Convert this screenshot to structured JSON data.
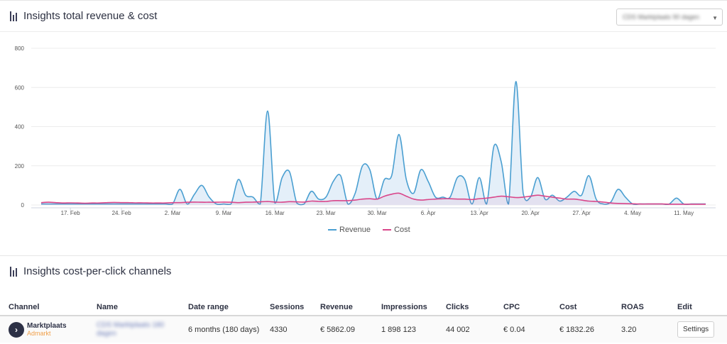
{
  "revenue_panel": {
    "title": "Insights total revenue & cost",
    "dropdown_value": "CDS Marktplaats 90 dagen"
  },
  "cpc_panel": {
    "title": "Insights cost-per-click channels",
    "columns": [
      "Channel",
      "Name",
      "Date range",
      "Sessions",
      "Revenue",
      "Impressions",
      "Clicks",
      "CPC",
      "Cost",
      "ROAS",
      "Edit"
    ],
    "row": {
      "channel_brand": "Marktplaats",
      "channel_sub": "Admarkt",
      "name_line1": "CDS Marktplaats 180",
      "name_line2": "dagen",
      "date_range": "6 months (180 days)",
      "sessions": "4330",
      "revenue": "€ 5862.09",
      "impressions": "1 898 123",
      "clicks": "44 002",
      "cpc": "€ 0.04",
      "cost": "€ 1832.26",
      "roas": "3.20",
      "edit_label": "Settings"
    }
  },
  "colors": {
    "revenue": "#4a9fd1",
    "cost": "#d9468a",
    "revenue_fill": "#e4eff9"
  },
  "chart_data": {
    "type": "area",
    "ylim": [
      0,
      800
    ],
    "yticks": [
      "0",
      "200",
      "400",
      "600",
      "800"
    ],
    "xticks": [
      "17. Feb",
      "24. Feb",
      "2. Mar",
      "9. Mar",
      "16. Mar",
      "23. Mar",
      "30. Mar",
      "6. Apr",
      "13. Apr",
      "20. Apr",
      "27. Apr",
      "4. May",
      "11. May"
    ],
    "xtick_day_index": [
      4,
      11,
      18,
      25,
      32,
      39,
      46,
      53,
      60,
      67,
      74,
      81,
      88
    ],
    "x_start": "13. Feb",
    "x_end": "15. May",
    "legend": [
      "Revenue",
      "Cost"
    ],
    "series": [
      {
        "name": "Revenue",
        "values": [
          5,
          5,
          5,
          5,
          5,
          5,
          5,
          5,
          5,
          5,
          5,
          5,
          5,
          5,
          5,
          5,
          5,
          5,
          5,
          80,
          5,
          55,
          100,
          40,
          5,
          5,
          5,
          130,
          50,
          40,
          5,
          480,
          10,
          140,
          170,
          10,
          5,
          70,
          30,
          40,
          120,
          150,
          5,
          60,
          200,
          180,
          30,
          130,
          150,
          360,
          130,
          60,
          180,
          120,
          40,
          40,
          40,
          140,
          130,
          5,
          140,
          5,
          300,
          220,
          5,
          630,
          60,
          40,
          140,
          30,
          50,
          20,
          40,
          70,
          50,
          150,
          30,
          5,
          15,
          80,
          40,
          5,
          5,
          5,
          5,
          5,
          5,
          35,
          5,
          5,
          5,
          5
        ]
      },
      {
        "name": "Cost",
        "values": [
          12,
          14,
          12,
          10,
          11,
          10,
          9,
          10,
          10,
          12,
          13,
          12,
          12,
          11,
          11,
          10,
          10,
          10,
          12,
          12,
          14,
          15,
          14,
          14,
          14,
          15,
          14,
          12,
          14,
          15,
          16,
          18,
          15,
          14,
          17,
          16,
          15,
          20,
          18,
          18,
          22,
          22,
          22,
          25,
          30,
          32,
          30,
          45,
          55,
          60,
          45,
          30,
          25,
          28,
          30,
          32,
          32,
          30,
          30,
          28,
          32,
          35,
          40,
          45,
          42,
          38,
          40,
          45,
          50,
          45,
          40,
          35,
          30,
          30,
          25,
          20,
          18,
          15,
          10,
          8,
          7,
          6,
          5,
          5,
          5,
          5,
          4,
          4,
          4,
          4,
          4,
          4
        ]
      }
    ]
  }
}
